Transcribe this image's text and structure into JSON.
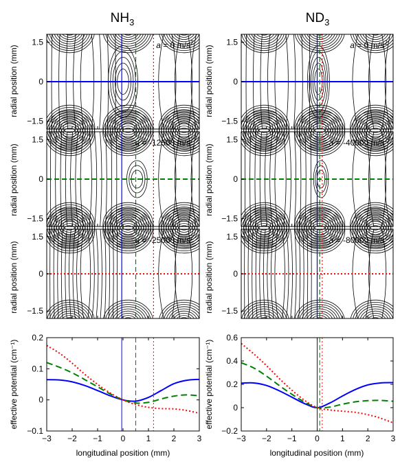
{
  "columns": [
    {
      "title": "NH3",
      "title_base": "NH",
      "title_sub": "3"
    },
    {
      "title": "ND3",
      "title_base": "ND",
      "title_sub": "3"
    }
  ],
  "labels": {
    "radial_ylabel": "radial position (mm)",
    "potential_ylabel": "effective potential (cm⁻¹)",
    "xlabel": "longitudinal position (mm)"
  },
  "contour_panels": [
    {
      "col": 0,
      "row": 0,
      "annotation": "a = 0 m/s²",
      "a_symbol": "a",
      "a_value": " = 0 m/s",
      "a_sup": "2"
    },
    {
      "col": 0,
      "row": 1,
      "annotation": "a = -12500 m/s²",
      "a_symbol": "a",
      "a_value": " = -12500 m/s",
      "a_sup": "2"
    },
    {
      "col": 0,
      "row": 2,
      "annotation": "a = -25000 m/s²",
      "a_symbol": "a",
      "a_value": " = -25000 m/s",
      "a_sup": "2"
    },
    {
      "col": 1,
      "row": 0,
      "annotation": "a = 0 m/s²",
      "a_symbol": "a",
      "a_value": " = 0 m/s",
      "a_sup": "2"
    },
    {
      "col": 1,
      "row": 1,
      "annotation": "a = -40000 m/s²",
      "a_symbol": "a",
      "a_value": " = -40000 m/s",
      "a_sup": "2"
    },
    {
      "col": 1,
      "row": 2,
      "annotation": "a = -80000 m/s²",
      "a_symbol": "a",
      "a_value": " = -80000 m/s",
      "a_sup": "2"
    }
  ],
  "chart_data": [
    {
      "type": "line",
      "panel": "NH3 effective potential",
      "xlabel": "longitudinal position (mm)",
      "ylabel": "effective potential (cm⁻¹)",
      "xlim": [
        -3,
        3
      ],
      "ylim": [
        -0.1,
        0.2
      ],
      "xticks": [
        -3,
        -2,
        -1,
        0,
        1,
        2,
        3
      ],
      "yticks": [
        -0.1,
        0,
        0.1,
        0.2
      ],
      "series": [
        {
          "style": "solid",
          "color": "#0000ff",
          "x": [
            -3,
            -2.5,
            -2,
            -1.5,
            -1,
            -0.5,
            0,
            0.5,
            1,
            1.5,
            2,
            2.5,
            3
          ],
          "y": [
            0.065,
            0.064,
            0.058,
            0.046,
            0.03,
            0.013,
            0.0,
            -0.004,
            0.008,
            0.03,
            0.052,
            0.063,
            0.066
          ]
        },
        {
          "style": "dashed",
          "color": "#008000",
          "x": [
            -3,
            -2.5,
            -2,
            -1.5,
            -1,
            -0.5,
            0,
            0.5,
            1,
            1.5,
            2,
            2.5,
            3
          ],
          "y": [
            0.12,
            0.105,
            0.087,
            0.065,
            0.042,
            0.019,
            0.0,
            -0.01,
            -0.008,
            0.003,
            0.012,
            0.016,
            0.013
          ]
        },
        {
          "style": "dotted",
          "color": "#ff0000",
          "x": [
            -3,
            -2.5,
            -2,
            -1.5,
            -1,
            -0.5,
            0,
            0.5,
            1,
            1.5,
            2,
            2.5,
            3
          ],
          "y": [
            0.175,
            0.15,
            0.118,
            0.082,
            0.05,
            0.022,
            0.0,
            -0.015,
            -0.024,
            -0.028,
            -0.029,
            -0.034,
            -0.043
          ]
        }
      ],
      "markers": [
        {
          "x": -0.05,
          "color": "#0000ff",
          "style": "solid"
        },
        {
          "x": 0.5,
          "color": "#008000",
          "style": "dashed"
        },
        {
          "x": 1.2,
          "color": "#ff0000",
          "style": "dotted"
        }
      ]
    },
    {
      "type": "line",
      "panel": "ND3 effective potential",
      "xlabel": "longitudinal position (mm)",
      "ylabel": "effective potential (cm⁻¹)",
      "xlim": [
        -3,
        3
      ],
      "ylim": [
        -0.2,
        0.6
      ],
      "xticks": [
        -3,
        -2,
        -1,
        0,
        1,
        2,
        3
      ],
      "yticks": [
        -0.2,
        0,
        0.2,
        0.4,
        0.6
      ],
      "series": [
        {
          "style": "solid",
          "color": "#0000ff",
          "x": [
            -3,
            -2.5,
            -2,
            -1.5,
            -1,
            -0.5,
            0,
            0.5,
            1,
            1.5,
            2,
            2.5,
            3
          ],
          "y": [
            0.21,
            0.212,
            0.19,
            0.145,
            0.09,
            0.035,
            0.0,
            0.04,
            0.1,
            0.155,
            0.195,
            0.212,
            0.215
          ]
        },
        {
          "style": "dashed",
          "color": "#008000",
          "x": [
            -3,
            -2.5,
            -2,
            -1.5,
            -1,
            -0.5,
            0,
            0.5,
            1,
            1.5,
            2,
            2.5,
            3
          ],
          "y": [
            0.385,
            0.34,
            0.27,
            0.19,
            0.115,
            0.048,
            0.0,
            0.005,
            0.03,
            0.05,
            0.06,
            0.062,
            0.055
          ]
        },
        {
          "style": "dotted",
          "color": "#ff0000",
          "x": [
            -3,
            -2.5,
            -2,
            -1.5,
            -1,
            -0.5,
            0,
            0.5,
            1,
            1.5,
            2,
            2.5,
            3
          ],
          "y": [
            0.55,
            0.46,
            0.36,
            0.25,
            0.15,
            0.063,
            0.0,
            -0.02,
            -0.03,
            -0.04,
            -0.06,
            -0.09,
            -0.13
          ]
        }
      ],
      "markers": [
        {
          "x": 0.0,
          "color": "#0000ff",
          "style": "solid"
        },
        {
          "x": 0.1,
          "color": "#008000",
          "style": "dashed"
        },
        {
          "x": 0.2,
          "color": "#ff0000",
          "style": "dotted"
        }
      ]
    },
    {
      "type": "contour",
      "panel": "radial contour maps",
      "xlim": [
        -3,
        3
      ],
      "ylim": [
        -1.8,
        1.8
      ],
      "yticks": [
        -1.5,
        0,
        1.5
      ],
      "panels": [
        {
          "col": "NH3",
          "annotation": "a = 0 m/s²",
          "line_color": "#0000ff",
          "line_style": "solid",
          "marker_x": -0.05,
          "extra_x": [
            {
              "x": 0.5,
              "color": "#008000",
              "style": "dashed"
            },
            {
              "x": 1.2,
              "color": "#ff0000",
              "style": "dotted"
            }
          ]
        },
        {
          "col": "NH3",
          "annotation": "a = -12500 m/s²",
          "line_color": "#008000",
          "line_style": "dashed",
          "marker_x": 0.5,
          "extra_x": [
            {
              "x": -0.05,
              "color": "#0000ff",
              "style": "solid"
            },
            {
              "x": 1.2,
              "color": "#ff0000",
              "style": "dotted"
            }
          ]
        },
        {
          "col": "NH3",
          "annotation": "a = -25000 m/s²",
          "line_color": "#ff0000",
          "line_style": "dotted",
          "marker_x": 1.2,
          "extra_x": [
            {
              "x": -0.05,
              "color": "#0000ff",
              "style": "solid"
            },
            {
              "x": 0.5,
              "color": "#008000",
              "style": "dashed"
            }
          ]
        },
        {
          "col": "ND3",
          "annotation": "a = 0 m/s²",
          "line_color": "#0000ff",
          "line_style": "solid",
          "marker_x": 0.0,
          "extra_x": [
            {
              "x": 0.1,
              "color": "#008000",
              "style": "dashed"
            },
            {
              "x": 0.2,
              "color": "#ff0000",
              "style": "dotted"
            }
          ]
        },
        {
          "col": "ND3",
          "annotation": "a = -40000 m/s²",
          "line_color": "#008000",
          "line_style": "dashed",
          "marker_x": 0.1,
          "extra_x": [
            {
              "x": 0.0,
              "color": "#0000ff",
              "style": "solid"
            },
            {
              "x": 0.2,
              "color": "#ff0000",
              "style": "dotted"
            }
          ]
        },
        {
          "col": "ND3",
          "annotation": "a = -80000 m/s²",
          "line_color": "#ff0000",
          "line_style": "dotted",
          "marker_x": 0.2,
          "extra_x": [
            {
              "x": 0.0,
              "color": "#0000ff",
              "style": "solid"
            },
            {
              "x": 0.1,
              "color": "#008000",
              "style": "dashed"
            }
          ]
        }
      ]
    }
  ]
}
